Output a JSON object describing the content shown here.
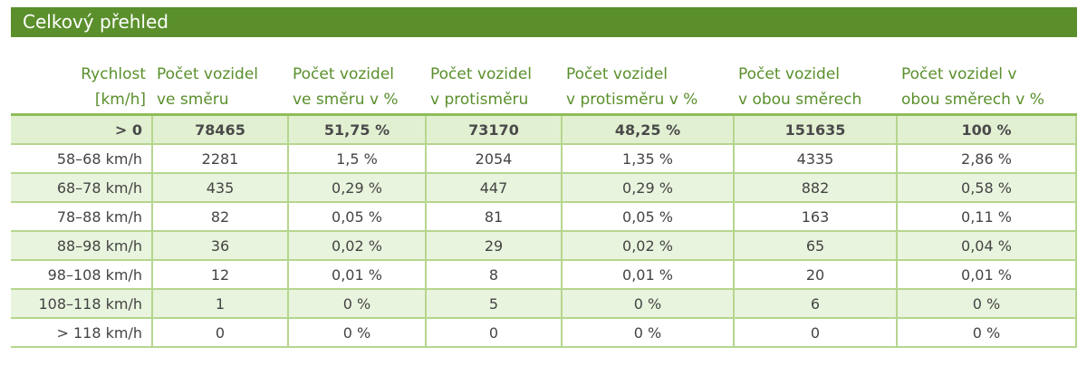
{
  "title": "Celkový přehled",
  "headers": {
    "speed": [
      "Rychlost",
      "[km/h]"
    ],
    "count_dir": [
      "Počet vozidel",
      "ve směru"
    ],
    "pct_dir": [
      "Počet vozidel",
      "ve směru v %"
    ],
    "count_opp": [
      "Počet vozidel",
      "v protisměru"
    ],
    "pct_opp": [
      "Počet vozidel",
      "v protisměru v %"
    ],
    "count_both": [
      "Počet vozidel",
      "v obou směrech"
    ],
    "pct_both": [
      "Počet vozidel v",
      "obou směrech v %"
    ]
  },
  "rows": [
    {
      "speed": "> 0",
      "count_dir": "78465",
      "pct_dir": "51,75 %",
      "count_opp": "73170",
      "pct_opp": "48,25 %",
      "count_both": "151635",
      "pct_both": "100 %"
    },
    {
      "speed": "58–68 km/h",
      "count_dir": "2281",
      "pct_dir": "1,5 %",
      "count_opp": "2054",
      "pct_opp": "1,35 %",
      "count_both": "4335",
      "pct_both": "2,86 %"
    },
    {
      "speed": "68–78 km/h",
      "count_dir": "435",
      "pct_dir": "0,29 %",
      "count_opp": "447",
      "pct_opp": "0,29 %",
      "count_both": "882",
      "pct_both": "0,58 %"
    },
    {
      "speed": "78–88 km/h",
      "count_dir": "82",
      "pct_dir": "0,05 %",
      "count_opp": "81",
      "pct_opp": "0,05 %",
      "count_both": "163",
      "pct_both": "0,11 %"
    },
    {
      "speed": "88–98 km/h",
      "count_dir": "36",
      "pct_dir": "0,02 %",
      "count_opp": "29",
      "pct_opp": "0,02 %",
      "count_both": "65",
      "pct_both": "0,04 %"
    },
    {
      "speed": "98–108 km/h",
      "count_dir": "12",
      "pct_dir": "0,01 %",
      "count_opp": "8",
      "pct_opp": "0,01 %",
      "count_both": "20",
      "pct_both": "0,01 %"
    },
    {
      "speed": "108–118 km/h",
      "count_dir": "1",
      "pct_dir": "0 %",
      "count_opp": "5",
      "pct_opp": "0 %",
      "count_both": "6",
      "pct_both": "0 %"
    },
    {
      "speed": "> 118 km/h",
      "count_dir": "0",
      "pct_dir": "0 %",
      "count_opp": "0",
      "pct_opp": "0 %",
      "count_both": "0",
      "pct_both": "0 %"
    }
  ]
}
